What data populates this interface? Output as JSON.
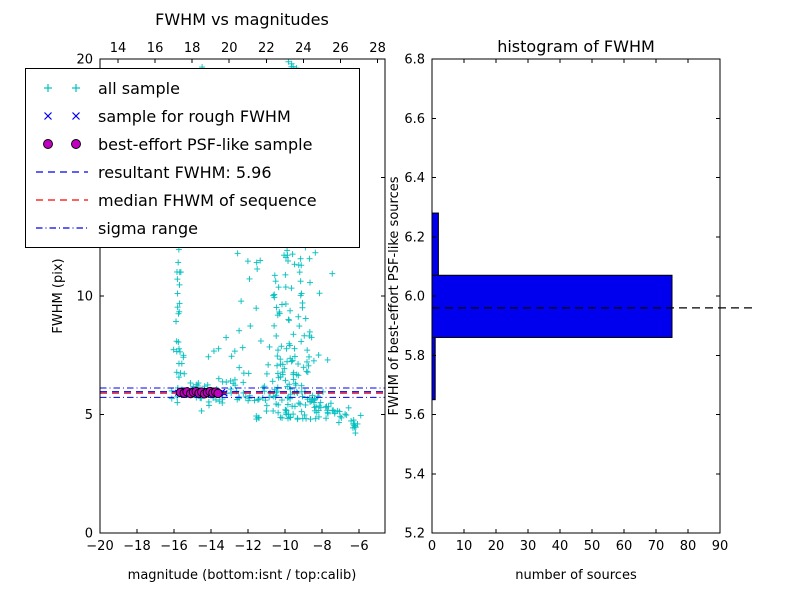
{
  "figure": {
    "background": "#ffffff"
  },
  "chart_data": [
    {
      "type": "scatter",
      "title": "FWHM vs magnitudes",
      "xlabel": "magnitude (bottom:isnt / top:calib)",
      "ylabel": "FWHM (pix)",
      "xlim": [
        -20,
        -4.6
      ],
      "ylim": [
        0,
        20
      ],
      "xticks": [
        -20,
        -18,
        -16,
        -14,
        -12,
        -10,
        -8,
        -6
      ],
      "yticks": [
        0,
        5,
        10,
        15,
        20
      ],
      "top_axis": {
        "lim": [
          13.03,
          28.4
        ],
        "ticks": [
          14,
          16,
          18,
          20,
          22,
          24,
          26,
          28
        ]
      },
      "lines": {
        "resultant_fwhm": 5.96,
        "median_fwhm": 5.9,
        "sigma_upper": 6.12,
        "sigma_lower": 5.72
      },
      "colors": {
        "all_sample": "#00bfbf",
        "rough_sample": "#0000ee",
        "psf_sample": "#bf00bf",
        "resultant": "#0000ee",
        "median": "#ff0000",
        "sigma": "#0000ee"
      },
      "legend": [
        {
          "label": "all sample",
          "marker": "plus",
          "color": "#00bfbf"
        },
        {
          "label": "sample for rough FWHM",
          "marker": "x",
          "color": "#0000ee"
        },
        {
          "label": "best-effort PSF-like sample",
          "marker": "circle",
          "color": "#bf00bf"
        },
        {
          "label": "resultant FWHM: 5.96",
          "marker": "dashed",
          "color": "#0000ee"
        },
        {
          "label": "median FHWM of sequence",
          "marker": "dashed",
          "color": "#ff0000"
        },
        {
          "label": "sigma range",
          "marker": "dashdot",
          "color": "#0000ee"
        }
      ],
      "all_sample_model": [
        {
          "type": "band",
          "x0": -16.2,
          "x1": -9.2,
          "ymean": 5.92,
          "ysd": 0.28,
          "count": 80
        },
        {
          "type": "box",
          "x0": -16.1,
          "x1": -12.8,
          "y0": 6.3,
          "y1": 7.8,
          "count": 9
        },
        {
          "type": "column",
          "xc": -15.75,
          "xsd": 0.07,
          "y0": 5.95,
          "y1": 12.6,
          "count": 22
        },
        {
          "type": "box",
          "x0": -16.0,
          "x1": -10.6,
          "y0": 12.0,
          "y1": 19.7,
          "count": 30
        },
        {
          "type": "box",
          "x0": -13.2,
          "x1": -10.3,
          "y0": 6.3,
          "y1": 12.0,
          "count": 24
        },
        {
          "type": "funnel",
          "xc": -9.55,
          "ybase": 4.8,
          "yspan": 15.2,
          "pow": 1.7,
          "xsd0": 0.22,
          "xsd1": 1.0,
          "count": 235
        },
        {
          "type": "tail",
          "x0": -9.0,
          "x1": -5.9,
          "y0": 5.72,
          "slope": -0.38,
          "ysd": 0.2,
          "count": 42
        }
      ],
      "rough_sample": [
        [
          -15.78,
          5.92
        ],
        [
          -15.62,
          5.97
        ],
        [
          -15.5,
          5.88
        ],
        [
          -15.35,
          5.95
        ],
        [
          -15.2,
          6.01
        ],
        [
          -15.05,
          5.9
        ],
        [
          -14.9,
          5.96
        ],
        [
          -14.75,
          5.87
        ],
        [
          -14.6,
          5.93
        ],
        [
          -14.45,
          5.99
        ],
        [
          -14.3,
          5.9
        ],
        [
          -14.15,
          5.96
        ],
        [
          -14.0,
          5.88
        ],
        [
          -13.85,
          5.94
        ],
        [
          -13.7,
          5.98
        ],
        [
          -13.55,
          5.9
        ],
        [
          -13.4,
          5.95
        ],
        [
          -13.28,
          5.89
        ],
        [
          -14.52,
          5.83
        ],
        [
          -15.12,
          6.03
        ]
      ],
      "psf_sample": [
        [
          -15.65,
          5.93
        ],
        [
          -15.45,
          5.9
        ],
        [
          -15.3,
          5.96
        ],
        [
          -15.1,
          5.88
        ],
        [
          -14.95,
          5.94
        ],
        [
          -14.8,
          5.97
        ],
        [
          -14.65,
          5.9
        ],
        [
          -14.5,
          5.95
        ],
        [
          -14.35,
          5.87
        ],
        [
          -14.2,
          5.93
        ],
        [
          -14.05,
          5.97
        ],
        [
          -13.9,
          5.91
        ],
        [
          -13.75,
          5.95
        ],
        [
          -13.62,
          5.89
        ]
      ]
    },
    {
      "type": "bar",
      "orientation": "horizontal",
      "title": "histogram of FWHM",
      "xlabel": "number of sources",
      "ylabel": "FWHM of best-effort PSF-like sources",
      "xlim": [
        0,
        90
      ],
      "ylim": [
        5.2,
        6.8
      ],
      "xticks": [
        0,
        10,
        20,
        30,
        40,
        50,
        60,
        70,
        80,
        90
      ],
      "yticks": [
        5.2,
        5.4,
        5.6,
        5.8,
        6.0,
        6.2,
        6.4,
        6.6,
        6.8
      ],
      "bar_color": "#0000ee",
      "bins": [
        {
          "y0": 5.65,
          "y1": 5.86,
          "count": 1
        },
        {
          "y0": 5.86,
          "y1": 6.07,
          "count": 75
        },
        {
          "y0": 6.07,
          "y1": 6.28,
          "count": 2
        }
      ],
      "median_line": 5.96
    }
  ]
}
